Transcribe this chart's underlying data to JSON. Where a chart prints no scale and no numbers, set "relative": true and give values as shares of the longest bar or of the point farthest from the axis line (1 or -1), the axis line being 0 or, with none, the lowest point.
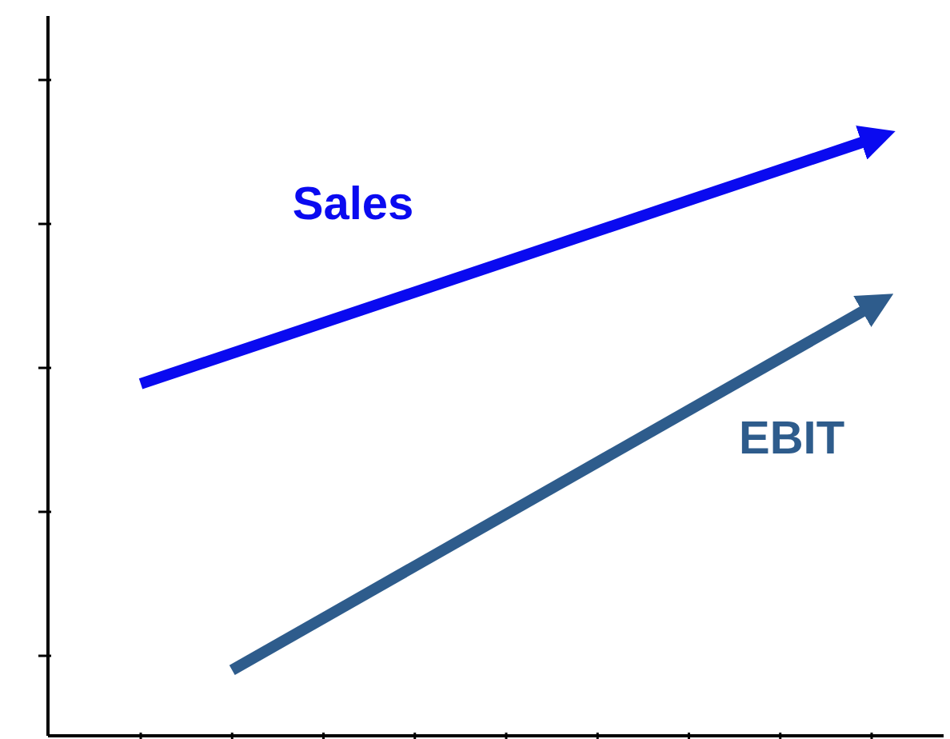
{
  "chart_data": {
    "type": "line",
    "relative": true,
    "line_style": "solid",
    "categories": [
      null,
      null,
      null,
      null,
      null,
      null,
      null,
      null,
      null
    ],
    "series": [
      {
        "name": "Sales",
        "color": "#0a0af0",
        "values": [
          0.59,
          null,
          null,
          null,
          null,
          null,
          null,
          null,
          1.0
        ]
      },
      {
        "name": "EBIT",
        "color": "#2e5c8c",
        "values": [
          null,
          0.11,
          null,
          null,
          null,
          null,
          null,
          null,
          0.72
        ]
      }
    ]
  }
}
